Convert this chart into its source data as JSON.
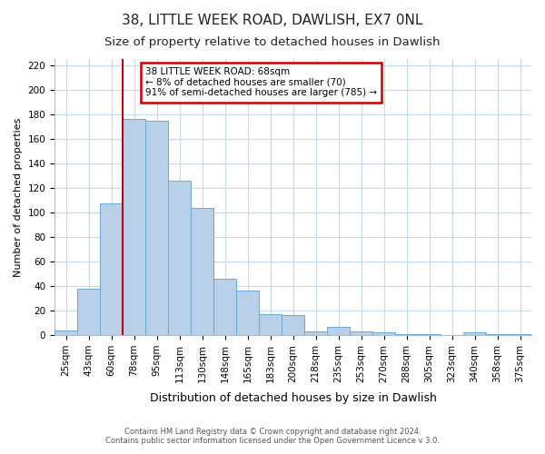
{
  "title": "38, LITTLE WEEK ROAD, DAWLISH, EX7 0NL",
  "subtitle": "Size of property relative to detached houses in Dawlish",
  "xlabel": "Distribution of detached houses by size in Dawlish",
  "ylabel": "Number of detached properties",
  "bar_labels": [
    "25sqm",
    "43sqm",
    "60sqm",
    "78sqm",
    "95sqm",
    "113sqm",
    "130sqm",
    "148sqm",
    "165sqm",
    "183sqm",
    "200sqm",
    "218sqm",
    "235sqm",
    "253sqm",
    "270sqm",
    "288sqm",
    "305sqm",
    "323sqm",
    "340sqm",
    "358sqm",
    "375sqm"
  ],
  "bar_values": [
    4,
    38,
    107,
    176,
    175,
    126,
    104,
    46,
    36,
    17,
    16,
    3,
    7,
    3,
    2,
    1,
    1,
    0,
    2,
    1,
    1
  ],
  "bar_color": "#b8d0e8",
  "bar_edge_color": "#6aaad4",
  "vline_x_idx": 2.5,
  "ylim": [
    0,
    225
  ],
  "yticks": [
    0,
    20,
    40,
    60,
    80,
    100,
    120,
    140,
    160,
    180,
    200,
    220
  ],
  "annotation_title": "38 LITTLE WEEK ROAD: 68sqm",
  "annotation_line1": "← 8% of detached houses are smaller (70)",
  "annotation_line2": "91% of semi-detached houses are larger (785) →",
  "annotation_box_color": "#ffffff",
  "annotation_box_edge": "#cc0000",
  "vline_color": "#cc0000",
  "footer1": "Contains HM Land Registry data © Crown copyright and database right 2024.",
  "footer2": "Contains public sector information licensed under the Open Government Licence v 3.0.",
  "title_fontsize": 11,
  "subtitle_fontsize": 9.5,
  "xlabel_fontsize": 9,
  "ylabel_fontsize": 8,
  "tick_fontsize": 7.5,
  "bar_width": 1.0,
  "grid_color": "#c8d8eb"
}
